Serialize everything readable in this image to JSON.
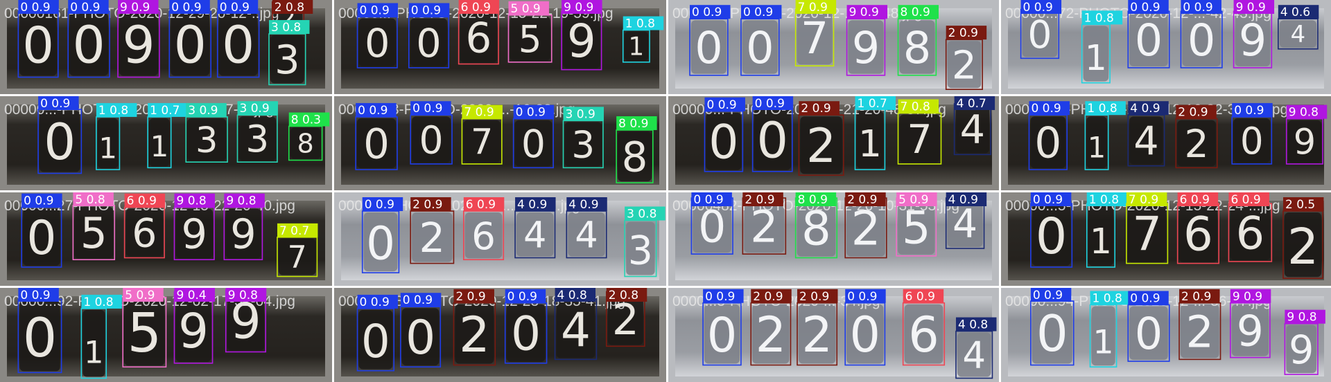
{
  "colors": {
    "0": "#1f3de8",
    "1": "#1ed3e0",
    "2": "#7a1a10",
    "3": "#25d4b4",
    "4": "#1b2a73",
    "5": "#f06ec8",
    "6": "#ef4654",
    "7": "#c6e800",
    "8": "#1fe14a",
    "9": "#b016e0"
  },
  "tiles": [
    {
      "caption": "00000161-PHOTO-2020-12-29-20-12-..jpg",
      "bg": "dark",
      "dets": [
        {
          "cls": "0",
          "conf": "0.9",
          "b": [
            0.055,
            0.12,
            0.175,
            0.82
          ]
        },
        {
          "cls": "0",
          "conf": "0.9",
          "b": [
            0.205,
            0.12,
            0.33,
            0.82
          ]
        },
        {
          "cls": "9",
          "conf": "0.9",
          "b": [
            0.355,
            0.12,
            0.48,
            0.82
          ]
        },
        {
          "cls": "0",
          "conf": "0.9",
          "b": [
            0.51,
            0.12,
            0.635,
            0.82
          ]
        },
        {
          "cls": "0",
          "conf": "0.9",
          "b": [
            0.655,
            0.12,
            0.78,
            0.82
          ]
        },
        {
          "cls": "2",
          "conf": "0.8",
          "b": [
            0.82,
            0.02,
            0.915,
            0.36
          ],
          "lbl": "2 0.8"
        },
        {
          "cls": "3",
          "conf": "0.8",
          "b": [
            0.81,
            0.36,
            0.92,
            0.9
          ]
        }
      ]
    },
    {
      "caption": "00000...-PHOTO-2020-12-15-22-19-59.jpg",
      "bg": "dark",
      "dets": [
        {
          "cls": "0",
          "conf": "0.9",
          "b": [
            0.07,
            0.18,
            0.19,
            0.72
          ]
        },
        {
          "cls": "0",
          "conf": "0.9",
          "b": [
            0.225,
            0.18,
            0.345,
            0.72
          ]
        },
        {
          "cls": "6",
          "conf": "0.9",
          "b": [
            0.375,
            0.12,
            0.495,
            0.68
          ]
        },
        {
          "cls": "5",
          "conf": "0.9",
          "b": [
            0.525,
            0.16,
            0.655,
            0.66
          ]
        },
        {
          "cls": "9",
          "conf": "0.9",
          "b": [
            0.685,
            0.12,
            0.805,
            0.74
          ]
        },
        {
          "cls": "1",
          "conf": "0.8",
          "b": [
            0.87,
            0.32,
            0.95,
            0.66
          ]
        }
      ]
    },
    {
      "caption": "00000...-PHOTO-2020-12-...-13-48.jpg",
      "bg": "light",
      "dets": [
        {
          "cls": "0",
          "conf": "0.9",
          "b": [
            0.065,
            0.2,
            0.18,
            0.8
          ]
        },
        {
          "cls": "0",
          "conf": "0.9",
          "b": [
            0.22,
            0.2,
            0.335,
            0.8
          ]
        },
        {
          "cls": "7",
          "conf": "0.9",
          "b": [
            0.385,
            0.1,
            0.5,
            0.7
          ]
        },
        {
          "cls": "9",
          "conf": "0.9",
          "b": [
            0.54,
            0.2,
            0.655,
            0.8
          ]
        },
        {
          "cls": "8",
          "conf": "0.9",
          "b": [
            0.695,
            0.2,
            0.81,
            0.8
          ]
        },
        {
          "cls": "2",
          "conf": "0.9",
          "b": [
            0.84,
            0.42,
            0.95,
            0.95
          ]
        }
      ]
    },
    {
      "caption": "00000...72-PHOTO-2020-12-...-42-43.jpg",
      "bg": "light",
      "dets": [
        {
          "cls": "0",
          "conf": "0.9",
          "b": [
            0.06,
            0.1,
            0.175,
            0.62
          ]
        },
        {
          "cls": "1",
          "conf": "0.8",
          "b": [
            0.245,
            0.26,
            0.33,
            0.88
          ]
        },
        {
          "cls": "0",
          "conf": "0.9",
          "b": [
            0.385,
            0.12,
            0.51,
            0.72
          ]
        },
        {
          "cls": "0",
          "conf": "0.9",
          "b": [
            0.545,
            0.12,
            0.67,
            0.72
          ]
        },
        {
          "cls": "9",
          "conf": "0.9",
          "b": [
            0.705,
            0.12,
            0.82,
            0.72
          ]
        },
        {
          "cls": "4",
          "conf": "0.6",
          "b": [
            0.84,
            0.2,
            0.96,
            0.52
          ]
        }
      ]
    },
    {
      "caption": "00000...-PHOTO-2020-12-11-16-27-5..jpg",
      "bg": "dark",
      "dets": [
        {
          "cls": "0",
          "conf": "0.9",
          "b": [
            0.115,
            0.14,
            0.245,
            0.82
          ]
        },
        {
          "cls": "1",
          "conf": "0.8",
          "b": [
            0.29,
            0.22,
            0.36,
            0.78
          ]
        },
        {
          "cls": "1",
          "conf": "0.7",
          "b": [
            0.445,
            0.22,
            0.515,
            0.76
          ]
        },
        {
          "cls": "3",
          "conf": "0.9",
          "b": [
            0.56,
            0.22,
            0.685,
            0.7
          ]
        },
        {
          "cls": "3",
          "conf": "0.9",
          "b": [
            0.715,
            0.2,
            0.835,
            0.7
          ]
        },
        {
          "cls": "8",
          "conf": "0.3",
          "b": [
            0.87,
            0.32,
            0.97,
            0.68
          ]
        }
      ]
    },
    {
      "caption": "00000...3-PHOTO-2020-...-16-38.jpg",
      "bg": "dark",
      "dets": [
        {
          "cls": "0",
          "conf": "0.9",
          "b": [
            0.065,
            0.22,
            0.19,
            0.78
          ]
        },
        {
          "cls": "0",
          "conf": "0.9",
          "b": [
            0.23,
            0.2,
            0.355,
            0.72
          ]
        },
        {
          "cls": "7",
          "conf": "0.9",
          "b": [
            0.385,
            0.24,
            0.505,
            0.72
          ]
        },
        {
          "cls": "0",
          "conf": "0.9",
          "b": [
            0.54,
            0.24,
            0.66,
            0.76
          ]
        },
        {
          "cls": "3",
          "conf": "0.9",
          "b": [
            0.69,
            0.26,
            0.81,
            0.76
          ]
        },
        {
          "cls": "8",
          "conf": "0.9",
          "b": [
            0.85,
            0.36,
            0.96,
            0.92
          ]
        }
      ]
    },
    {
      "caption": "00000...-PHOTO-2020-11-21-20-48-57.jpg",
      "bg": "dark",
      "dets": [
        {
          "cls": "0",
          "conf": "0.9",
          "b": [
            0.11,
            0.16,
            0.225,
            0.8
          ]
        },
        {
          "cls": "0",
          "conf": "0.9",
          "b": [
            0.255,
            0.12,
            0.375,
            0.8
          ]
        },
        {
          "cls": "2",
          "conf": "0.9",
          "b": [
            0.395,
            0.2,
            0.53,
            0.84
          ]
        },
        {
          "cls": "1",
          "conf": "0.7",
          "b": [
            0.565,
            0.14,
            0.655,
            0.78
          ]
        },
        {
          "cls": "7",
          "conf": "0.8",
          "b": [
            0.695,
            0.18,
            0.825,
            0.72
          ]
        },
        {
          "cls": "4",
          "conf": "0.7",
          "b": [
            0.865,
            0.08,
            0.975,
            0.62
          ]
        }
      ]
    },
    {
      "caption": "00000...3-PHOTO-2020-12-16-22-37-50.jpg",
      "bg": "dark",
      "dets": [
        {
          "cls": "0",
          "conf": "0.9",
          "b": [
            0.085,
            0.2,
            0.2,
            0.78
          ]
        },
        {
          "cls": "1",
          "conf": "0.8",
          "b": [
            0.255,
            0.2,
            0.325,
            0.78
          ]
        },
        {
          "cls": "4",
          "conf": "0.9",
          "b": [
            0.385,
            0.2,
            0.495,
            0.74
          ]
        },
        {
          "cls": "2",
          "conf": "0.9",
          "b": [
            0.53,
            0.24,
            0.655,
            0.76
          ]
        },
        {
          "cls": "0",
          "conf": "0.9",
          "b": [
            0.7,
            0.22,
            0.82,
            0.72
          ]
        },
        {
          "cls": "9",
          "conf": "0.8",
          "b": [
            0.865,
            0.24,
            0.975,
            0.72
          ]
        }
      ]
    },
    {
      "caption": "00000...27-PHOTO-2020-12-15-22-20-40.jpg",
      "bg": "dark",
      "dets": [
        {
          "cls": "0",
          "conf": "0.9",
          "b": [
            0.065,
            0.16,
            0.185,
            0.8
          ]
        },
        {
          "cls": "5",
          "conf": "0.8",
          "b": [
            0.22,
            0.14,
            0.345,
            0.72
          ]
        },
        {
          "cls": "6",
          "conf": "0.9",
          "b": [
            0.375,
            0.16,
            0.495,
            0.7
          ]
        },
        {
          "cls": "9",
          "conf": "0.8",
          "b": [
            0.525,
            0.16,
            0.645,
            0.72
          ]
        },
        {
          "cls": "9",
          "conf": "0.8",
          "b": [
            0.675,
            0.16,
            0.79,
            0.72
          ]
        },
        {
          "cls": "7",
          "conf": "0.7",
          "b": [
            0.835,
            0.48,
            0.955,
            0.9
          ]
        }
      ]
    },
    {
      "caption": "0000...-PHOTO-2020-12-...-09-01.jpg",
      "bg": "light",
      "dets": [
        {
          "cls": "0",
          "conf": "0.9",
          "b": [
            0.085,
            0.2,
            0.195,
            0.86
          ]
        },
        {
          "cls": "2",
          "conf": "0.9",
          "b": [
            0.23,
            0.2,
            0.36,
            0.76
          ]
        },
        {
          "cls": "6",
          "conf": "0.9",
          "b": [
            0.39,
            0.2,
            0.51,
            0.72
          ]
        },
        {
          "cls": "4",
          "conf": "0.9",
          "b": [
            0.545,
            0.2,
            0.665,
            0.7
          ]
        },
        {
          "cls": "4",
          "conf": "0.9",
          "b": [
            0.7,
            0.2,
            0.82,
            0.7
          ]
        },
        {
          "cls": "3",
          "conf": "0.8",
          "b": [
            0.875,
            0.3,
            0.97,
            0.9
          ]
        }
      ]
    },
    {
      "caption": "00000482-PHOTO-2020-12-26-10-31-53.jpg",
      "bg": "light",
      "dets": [
        {
          "cls": "0",
          "conf": "0.9",
          "b": [
            0.07,
            0.06,
            0.195,
            0.66
          ]
        },
        {
          "cls": "2",
          "conf": "0.9",
          "b": [
            0.225,
            0.06,
            0.355,
            0.66
          ]
        },
        {
          "cls": "8",
          "conf": "0.9",
          "b": [
            0.385,
            0.06,
            0.51,
            0.7
          ]
        },
        {
          "cls": "2",
          "conf": "0.9",
          "b": [
            0.535,
            0.06,
            0.66,
            0.7
          ]
        },
        {
          "cls": "5",
          "conf": "0.9",
          "b": [
            0.69,
            0.06,
            0.81,
            0.68
          ]
        },
        {
          "cls": "4",
          "conf": "0.9",
          "b": [
            0.84,
            0.06,
            0.955,
            0.6
          ]
        }
      ]
    },
    {
      "caption": "00000...5-PHOTO-2020-12-15-22-24-...jpg",
      "bg": "dark",
      "dets": [
        {
          "cls": "0",
          "conf": "0.9",
          "b": [
            0.09,
            0.12,
            0.215,
            0.8
          ]
        },
        {
          "cls": "1",
          "conf": "0.8",
          "b": [
            0.26,
            0.12,
            0.345,
            0.8
          ]
        },
        {
          "cls": "7",
          "conf": "0.9",
          "b": [
            0.38,
            0.12,
            0.505,
            0.76
          ]
        },
        {
          "cls": "6",
          "conf": "0.9",
          "b": [
            0.535,
            0.12,
            0.66,
            0.76
          ]
        },
        {
          "cls": "6",
          "conf": "0.9",
          "b": [
            0.69,
            0.12,
            0.82,
            0.74
          ]
        },
        {
          "cls": "2",
          "conf": "0.5",
          "b": [
            0.855,
            0.2,
            0.975,
            0.92
          ]
        }
      ]
    },
    {
      "caption": "00000...92-PHOTO-2020-12-02-17-32-04.jpg",
      "bg": "dark",
      "dets": [
        {
          "cls": "0",
          "conf": "0.9",
          "b": [
            0.055,
            0.12,
            0.185,
            0.9
          ]
        },
        {
          "cls": "1",
          "conf": "0.8",
          "b": [
            0.245,
            0.22,
            0.32,
            0.96
          ]
        },
        {
          "cls": "5",
          "conf": "0.9",
          "b": [
            0.37,
            0.1,
            0.5,
            0.84
          ]
        },
        {
          "cls": "9",
          "conf": "0.4",
          "b": [
            0.525,
            0.04,
            0.64,
            0.8
          ]
        },
        {
          "cls": "9",
          "conf": "0.8",
          "b": [
            0.68,
            0.02,
            0.8,
            0.68
          ]
        }
      ]
    },
    {
      "caption": "00002558-PHOTO-2020-12-23-18-35-41.jpg",
      "bg": "dark",
      "dets": [
        {
          "cls": "0",
          "conf": "0.9",
          "b": [
            0.07,
            0.22,
            0.18,
            0.88
          ]
        },
        {
          "cls": "0",
          "conf": "0.9",
          "b": [
            0.2,
            0.2,
            0.32,
            0.84
          ]
        },
        {
          "cls": "2",
          "conf": "0.9",
          "b": [
            0.36,
            0.16,
            0.485,
            0.82
          ]
        },
        {
          "cls": "0",
          "conf": "0.9",
          "b": [
            0.515,
            0.16,
            0.64,
            0.8
          ]
        },
        {
          "cls": "4",
          "conf": "0.8",
          "b": [
            0.665,
            0.12,
            0.79,
            0.76
          ]
        },
        {
          "cls": "2",
          "conf": "0.8",
          "b": [
            0.82,
            0.04,
            0.935,
            0.62
          ]
        }
      ]
    },
    {
      "caption": "0000...3-PHOTO-2020-...-34.jpg",
      "bg": "light",
      "dets": [
        {
          "cls": "0",
          "conf": "0.9",
          "b": [
            0.105,
            0.16,
            0.22,
            0.82
          ]
        },
        {
          "cls": "2",
          "conf": "0.9",
          "b": [
            0.25,
            0.16,
            0.37,
            0.82
          ]
        },
        {
          "cls": "2",
          "conf": "0.9",
          "b": [
            0.39,
            0.16,
            0.51,
            0.82
          ]
        },
        {
          "cls": "0",
          "conf": "0.9",
          "b": [
            0.535,
            0.16,
            0.655,
            0.82
          ]
        },
        {
          "cls": "6",
          "conf": "0.9",
          "b": [
            0.71,
            0.16,
            0.835,
            0.82
          ]
        },
        {
          "cls": "4",
          "conf": "0.8",
          "b": [
            0.87,
            0.46,
            0.98,
            0.96
          ]
        }
      ]
    },
    {
      "caption": "00000...94-PHOTO-2020-12-...-36-47.jpg",
      "bg": "light",
      "dets": [
        {
          "cls": "0",
          "conf": "0.9",
          "b": [
            0.09,
            0.14,
            0.22,
            0.82
          ]
        },
        {
          "cls": "1",
          "conf": "0.8",
          "b": [
            0.27,
            0.18,
            0.35,
            0.84
          ]
        },
        {
          "cls": "0",
          "conf": "0.9",
          "b": [
            0.385,
            0.18,
            0.51,
            0.78
          ]
        },
        {
          "cls": "2",
          "conf": "0.9",
          "b": [
            0.54,
            0.16,
            0.665,
            0.76
          ]
        },
        {
          "cls": "9",
          "conf": "0.9",
          "b": [
            0.695,
            0.16,
            0.815,
            0.74
          ]
        },
        {
          "cls": "9",
          "conf": "0.8",
          "b": [
            0.86,
            0.38,
            0.96,
            0.92
          ]
        }
      ]
    }
  ]
}
